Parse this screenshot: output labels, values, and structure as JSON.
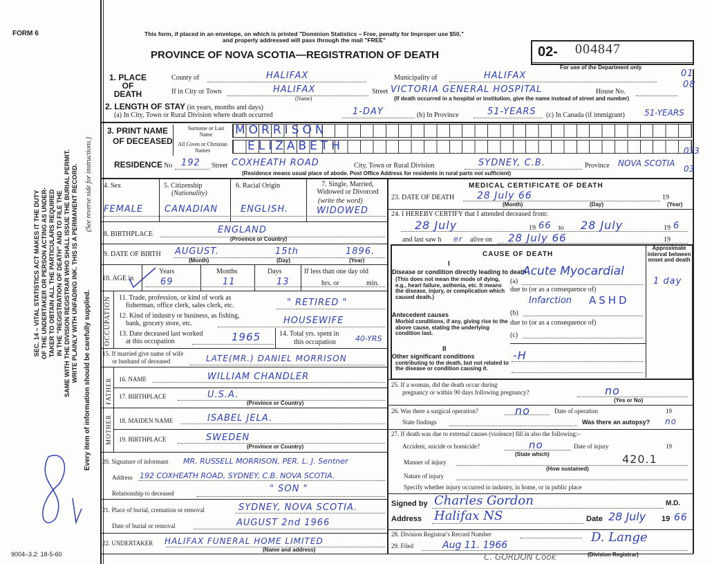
{
  "header": {
    "form_no": "FORM 6",
    "notice": "This form, if placed in an envelope, on which is printed \"Dominion Statistics – Free, penalty for Improper use $50,\" and properly addressed will pass through the mail \"FREE\"",
    "title": "PROVINCE OF NOVA SCOTIA—REGISTRATION OF DEATH",
    "reg_prefix": "02-",
    "reg_number": "004847",
    "dept_note": "For use of the Department only",
    "dept_codes": [
      "01",
      "08"
    ],
    "residence_codes": [
      "033",
      "03"
    ]
  },
  "side": {
    "act_lines": [
      "SEC. 14 – VITAL STATISTICS ACT MAKES IT THE DUTY",
      "OF THE UNDERTAKER OR PERSON ACTING AS UNDER-",
      "TAKER TO OBTAIN ALL THE PARTICULARS REQUIRED",
      "IN THE \"REGISTRATION OF DEATH\" AND TO FILE THE",
      "SAME WITH THE DIVISION REGISTRAR WHO SHALL ISSUE THE BURIAL PERMIT.",
      "WRITE PLAINLY WITH UNFADING INK. THIS IS A PERMANENT RECORD."
    ],
    "every_item": "Every item of information should be carefully supplied.",
    "see_reverse": "(See reverse side for instructions.)",
    "print_code": "9004–3.2: 18-5-60"
  },
  "place": {
    "label": "1. PLACE OF DEATH",
    "county_label": "County of",
    "county": "HALIFAX",
    "municipality_label": "Municipality of",
    "municipality": "HALIFAX",
    "city_label": "If in City or Town",
    "city": "HALIFAX",
    "name_note": "(Name)",
    "street_label": "Street",
    "street": "VICTORIA GENERAL HOSPITAL",
    "house_label": "House No.",
    "inst_note": "(If death occurred in a hospital or institution, give the name instead of street and number)"
  },
  "stay": {
    "label": "2. LENGTH OF STAY",
    "label_note": "(in years, months and days)",
    "a_label": "(a) In City, Town or Rural Division where death occurred",
    "a": "1-DAY",
    "b_label": "(b) In Province",
    "b": "51-YEARS",
    "c_label": "(c) In Canada (if immigrant)",
    "c": "51-YEARS"
  },
  "name": {
    "label1": "3. PRINT NAME",
    "label2": "OF DECEASED",
    "surname_label": "Surname or Last Name",
    "surname": "MORRISON",
    "given_label": "All Given or Christian Names",
    "given": "ELIZABETH"
  },
  "residence": {
    "label": "RESIDENCE",
    "no_label": "No",
    "no": "192",
    "street_label": "Street",
    "street": "COXHEATH ROAD",
    "city_label": "City, Town or Rural Division",
    "city": "SYDNEY, C.B.",
    "province_label": "Province",
    "province": "NOVA SCOTIA",
    "note": "(Residence means usual place of abode. Post Office Address for residents in rural parts not sufficient)"
  },
  "personal": {
    "sex_label": "4. Sex",
    "sex": "FEMALE",
    "citizenship_label": "5. Citizenship",
    "citizenship_sub": "(Nationality)",
    "citizenship": "CANADIAN",
    "racial_label": "6. Racial Origin",
    "racial": "ENGLISH.",
    "marital_label": "7. Single, Married, Widowed or Divorced",
    "marital_sub": "(write the word)",
    "marital": "WIDOWED",
    "birthplace_label": "8. BIRTHPLACE",
    "birthplace": "ENGLAND",
    "prov_note": "(Province or Country)",
    "dob_label": "9. DATE OF BIRTH",
    "dob_month": "AUGUST.",
    "dob_day": "15th",
    "dob_year": "1896.",
    "month_note": "(Month)",
    "day_note": "(Day)",
    "year_note": "(Year)",
    "age_label": "10. AGE in",
    "years_label": "Years",
    "years": "69",
    "months_label": "Months",
    "months": "11",
    "days_label": "Days",
    "days": "13",
    "lessday_label": "If less than one day old",
    "hrs_label": "hrs. or",
    "min_label": "min."
  },
  "occupation": {
    "label": "OCCUPATION",
    "q11": "11. Trade, profession, or kind of work as",
    "q11b": "fisherman, office clerk, sales clerk, etc.",
    "a11": "\" RETIRED \"",
    "q12": "12. Kind of industry or business, as fishing,",
    "q12b": "bank, grocery store, etc.",
    "a12": "HOUSEWIFE",
    "q13": "13. Date deceased last worked",
    "q13b": "at this occupation",
    "a13": "1965",
    "q14": "14. Total yrs. spent in",
    "q14b": "this occupation",
    "a14": "40-YRS"
  },
  "family": {
    "q15": "15. If married give name of wife",
    "q15b": "or husband of deceased",
    "a15": "LATE(MR.) DANIEL MORRISON",
    "father_label": "FATHER",
    "q16": "16. NAME",
    "a16": "WILLIAM CHANDLER",
    "q17": "17. BIRTHPLACE",
    "a17": "U.S.A.",
    "mother_label": "MOTHER",
    "q18": "18. MAIDEN NAME",
    "a18": "ISABEL JELA.",
    "q19": "19. BIRTHPLACE",
    "a19": "SWEDEN",
    "prov_note": "(Province or Country)"
  },
  "informant": {
    "q20": "20. Signature of informant",
    "a20": "MR. RUSSELL MORRISON, PER. L. J. Sentner",
    "addr_label": "Address",
    "addr": "192 COXHEATH ROAD, SYDNEY, C.B. NOVA SCOTIA.",
    "rel_label": "Relationship to deceased",
    "rel": "\" SON \"",
    "q21": "21. Place of burial, cremation or removal",
    "a21": "SYDNEY, NOVA SCOTIA.",
    "burial_date_label": "Date of burial or removal",
    "burial_date": "AUGUST 2nd 1966",
    "q22": "22. UNDERTAKER",
    "a22": "HALIFAX FUNERAL HOME LIMITED",
    "name_addr_note": "(Name and address)"
  },
  "medical": {
    "title": "MEDICAL CERTIFICATE OF DEATH",
    "q23": "23. DATE OF DEATH",
    "a23": "28 July 66",
    "yr19": "19",
    "q24": "24. I HEREBY CERTIFY that I attended deceased from:",
    "from": "28 July",
    "from_yr": "66",
    "to_label": "to",
    "to": "28 July",
    "to_yr": "6",
    "last_saw_label": "and last saw h",
    "last_saw_her": "er",
    "alive_label": "alive on",
    "last_saw": "28 July 66"
  },
  "cause": {
    "title": "CAUSE OF DEATH",
    "I": "I",
    "disease_label": "Disease or condition directly leading to death",
    "disease_note": "(This does not mean the mode of dying, e.g., heart failure, asthenia, etc. It means the disease, injury, or complication which caused death.)",
    "a_label": "(a)",
    "a": "Acute Myocardial",
    "due_to": "due to (or as a consequence of)",
    "a2": "Infarction",
    "a3": "ASHD",
    "b_label": "(b)",
    "c_label": "(c)",
    "antecedent_label": "Antecedent causes",
    "antecedent_note": "Morbid conditions, if any, giving rise to the above cause, stating the underlying condition last.",
    "II": "II",
    "other_label": "Other significant conditions",
    "other_note": "contributing to the death, but not related to the disease or condition causing it.",
    "other": "-H",
    "interval_label": "Approximate interval between onset and death",
    "interval": "1 day"
  },
  "extra": {
    "q25": "25. If a woman, did the death occur during",
    "q25b": "pregnancy or within 90 days following pregnancy?",
    "a25": "no",
    "yes_no": "(Yes or No)",
    "q26": "26. Was there a surgical operation?",
    "a26": "no",
    "op_date_label": "Date of operation",
    "findings_label": "State findings",
    "autopsy_label": "Was there an autopsy?",
    "autopsy": "no",
    "q27": "27. If death was due to external causes (violence) fill in also the following:–",
    "accident_label": "Accident, suicide or homicide?",
    "accident": "no",
    "state_which": "(State which)",
    "injury_date_label": "Date of injury",
    "manner_label": "Manner of injury",
    "code": "420.1",
    "how_sustained": "(How sustained)",
    "nature_label": "Nature of injury",
    "specify_label": "Specify whether injury occurred in industry, in home, or in public place"
  },
  "signature": {
    "signed_label": "Signed by",
    "signed": "Charles Gordon",
    "md": "M.D.",
    "addr_label": "Address",
    "addr": "Halifax NS",
    "date_label": "Date",
    "date": "28 July",
    "yr": "66"
  },
  "registrar": {
    "q28": "28. Division Registrar's Record Number",
    "q29": "29. Filed",
    "filed": "Aug 11. 1966",
    "registrar_sig": "D. Lange",
    "registrar_note": "(Division Registrar)",
    "stamp": "C. GORDON Cook"
  }
}
